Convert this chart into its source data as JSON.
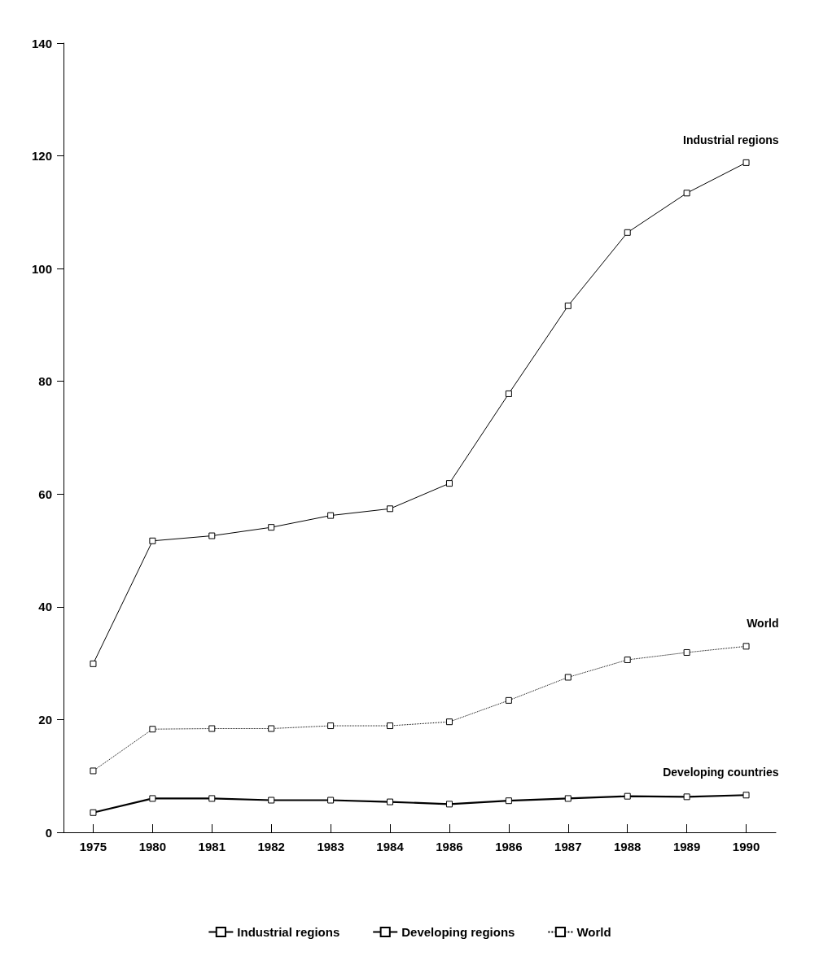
{
  "chart_data": {
    "type": "line",
    "categories": [
      "1975",
      "1980",
      "1981",
      "1982",
      "1983",
      "1984",
      "1986",
      "1986",
      "1987",
      "1988",
      "1989",
      "1990"
    ],
    "series": [
      {
        "name": "Industrial regions",
        "color": "#000000",
        "line_style": "solid",
        "values": [
          29.9,
          51.7,
          52.6,
          54.1,
          56.2,
          57.4,
          61.9,
          77.8,
          93.4,
          106.4,
          113.4,
          118.8
        ]
      },
      {
        "name": "Developing regions",
        "color": "#000000",
        "line_style": "solid",
        "values": [
          3.5,
          6.0,
          6.0,
          5.7,
          5.7,
          5.4,
          5.0,
          5.6,
          6.0,
          6.4,
          6.3,
          6.6
        ]
      },
      {
        "name": "World",
        "color": "#000000",
        "line_style": "dotted",
        "values": [
          10.9,
          18.3,
          18.4,
          18.4,
          18.9,
          18.9,
          19.6,
          23.4,
          27.5,
          30.6,
          31.9,
          33.0
        ]
      }
    ],
    "annotations": [
      "Industrial regions",
      "Developing countries",
      "World"
    ],
    "ylim": [
      0,
      140
    ],
    "yticks": [
      0,
      20,
      40,
      60,
      80,
      100,
      120,
      140
    ],
    "marker": "square",
    "legend": "bottom",
    "grid": false
  }
}
